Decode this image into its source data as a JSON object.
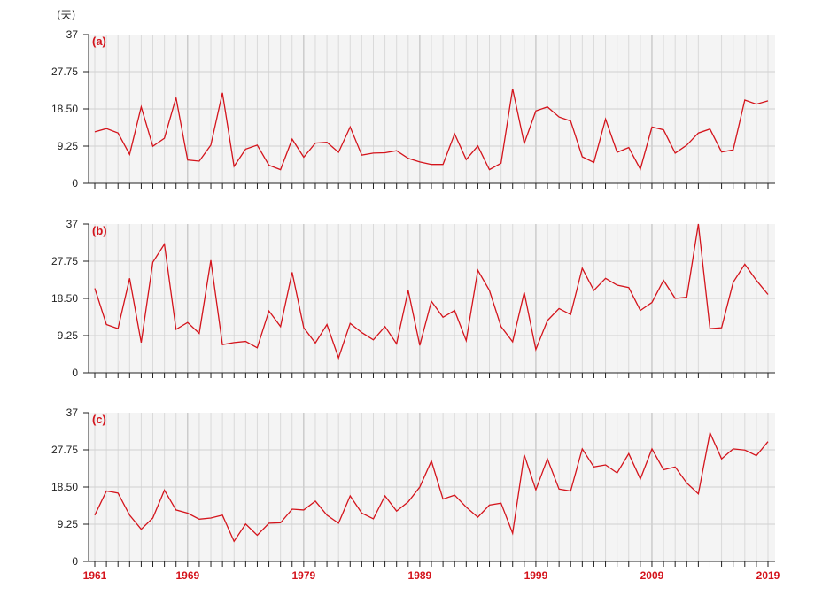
{
  "unit_label": "(天)",
  "chart_data": {
    "type": "line",
    "x_start": 1961,
    "x_end": 2019,
    "x_ticks": [
      1961,
      1969,
      1979,
      1989,
      1999,
      2009,
      2019
    ],
    "y_ticks": [
      0,
      9.25,
      18.5,
      27.75,
      37
    ],
    "y_tick_labels": [
      "0",
      "9.25",
      "18.50",
      "27.75",
      "37"
    ],
    "ylim": [
      0,
      37
    ],
    "grid": true,
    "line_color": "#d4141c",
    "panels": [
      {
        "label": "(a)",
        "values": [
          12.8,
          13.6,
          12.5,
          7.2,
          19.0,
          9.2,
          11.2,
          21.3,
          5.8,
          5.5,
          9.5,
          22.5,
          4.2,
          8.5,
          9.5,
          4.5,
          3.4,
          11.0,
          6.5,
          10.0,
          10.2,
          7.7,
          14.0,
          7.0,
          7.5,
          7.6,
          8.1,
          6.2,
          5.3,
          4.7,
          4.7,
          12.3,
          5.9,
          9.3,
          3.4,
          5.0,
          23.5,
          9.9,
          18.0,
          19.0,
          16.5,
          15.5,
          6.6,
          5.2,
          16.0,
          7.7,
          8.9,
          3.5,
          14.0,
          13.3,
          7.5,
          9.5,
          12.5,
          13.5,
          7.8,
          8.3,
          20.7,
          19.7,
          20.5
        ]
      },
      {
        "label": "(b)",
        "values": [
          21.0,
          12.0,
          11.0,
          23.5,
          7.5,
          27.5,
          32.0,
          10.8,
          12.5,
          9.8,
          28.0,
          7.0,
          7.5,
          7.8,
          6.2,
          15.4,
          11.5,
          25.0,
          11.2,
          7.4,
          12.0,
          3.7,
          12.3,
          10.0,
          8.2,
          11.5,
          7.2,
          20.5,
          6.8,
          17.8,
          13.8,
          15.5,
          8.0,
          25.5,
          20.5,
          11.5,
          7.7,
          20.0,
          5.8,
          13.0,
          16.0,
          14.5,
          26.0,
          20.5,
          23.5,
          21.8,
          21.2,
          15.5,
          17.5,
          23.0,
          18.5,
          18.8,
          37.0,
          11.0,
          11.2,
          22.5,
          27.0,
          23.0,
          19.5
        ]
      },
      {
        "label": "(c)",
        "values": [
          11.5,
          17.5,
          17.0,
          11.5,
          8.0,
          10.8,
          17.7,
          12.8,
          12.0,
          10.5,
          10.8,
          11.5,
          5.0,
          9.3,
          6.5,
          9.5,
          9.6,
          13.0,
          12.8,
          15.0,
          11.5,
          9.5,
          16.3,
          12.0,
          10.6,
          16.3,
          12.5,
          14.8,
          18.5,
          25.0,
          15.5,
          16.5,
          13.5,
          11.0,
          14.0,
          14.5,
          7.0,
          26.5,
          17.8,
          25.5,
          18.0,
          17.5,
          28.0,
          23.5,
          24.0,
          22.0,
          26.8,
          20.5,
          28.0,
          22.8,
          23.5,
          19.5,
          16.8,
          32.0,
          25.5,
          28.0,
          27.7,
          26.3,
          29.8
        ]
      }
    ]
  }
}
